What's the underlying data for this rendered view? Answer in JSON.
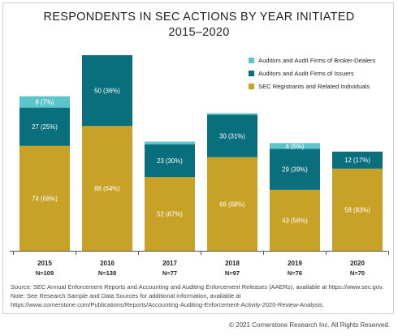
{
  "title_line1": "RESPONDENTS IN SEC ACTIONS BY YEAR INITIATED",
  "title_line2": "2015–2020",
  "colors": {
    "broker": "#5cc5cc",
    "issuers": "#0a6f7c",
    "registrants": "#c8a227"
  },
  "legend": [
    {
      "name": "Auditors and Audit Firms of Broker-Dealers",
      "color_key": "broker"
    },
    {
      "name": "Auditors and Audit Firms of Issuers",
      "color_key": "issuers"
    },
    {
      "name": "SEC Registrants and Related Individuals",
      "color_key": "registrants"
    }
  ],
  "chart_data": {
    "type": "bar",
    "stacked": true,
    "categories": [
      "2015",
      "2016",
      "2017",
      "2018",
      "2019",
      "2020"
    ],
    "category_n": [
      "N=109",
      "N=138",
      "N=77",
      "N=97",
      "N=76",
      "N=70"
    ],
    "series": [
      {
        "name": "SEC Registrants and Related Individuals",
        "color_key": "registrants",
        "values": [
          74,
          88,
          52,
          66,
          43,
          58
        ],
        "labels": [
          "74 (68%)",
          "88 (64%)",
          "52 (67%)",
          "66 (68%)",
          "43 (56%)",
          "58 (83%)"
        ]
      },
      {
        "name": "Auditors and Audit Firms of Issuers",
        "color_key": "issuers",
        "values": [
          27,
          50,
          23,
          30,
          29,
          12
        ],
        "labels": [
          "27 (25%)",
          "50 (36%)",
          "23 (30%)",
          "30 (31%)",
          "29 (39%)",
          "12 (17%)"
        ]
      },
      {
        "name": "Auditors and Audit Firms of Broker-Dealers",
        "color_key": "broker",
        "values": [
          8,
          0,
          2,
          1,
          4,
          0
        ],
        "labels": [
          "8 (7%)",
          "",
          "",
          "",
          "4 (5%)",
          ""
        ]
      }
    ],
    "ylim": [
      0,
      140
    ],
    "grid": false,
    "legend_position": "top-right"
  },
  "source_lines": [
    "Source: SEC Annual Enforcement Reports and Accounting and Auditing Enforcement Releases (AAERs), available at https://www.sec.gov.",
    "Note: See Research Sample and Data Sources for additional information, available at",
    "https://www.cornerstone.com/Publications/Reports/Accounting-Auditing-Enforcement-Activity-2020-Review-Analysis."
  ],
  "copyright": "© 2021 Cornerstone Research Inc. All Rights Reserved."
}
